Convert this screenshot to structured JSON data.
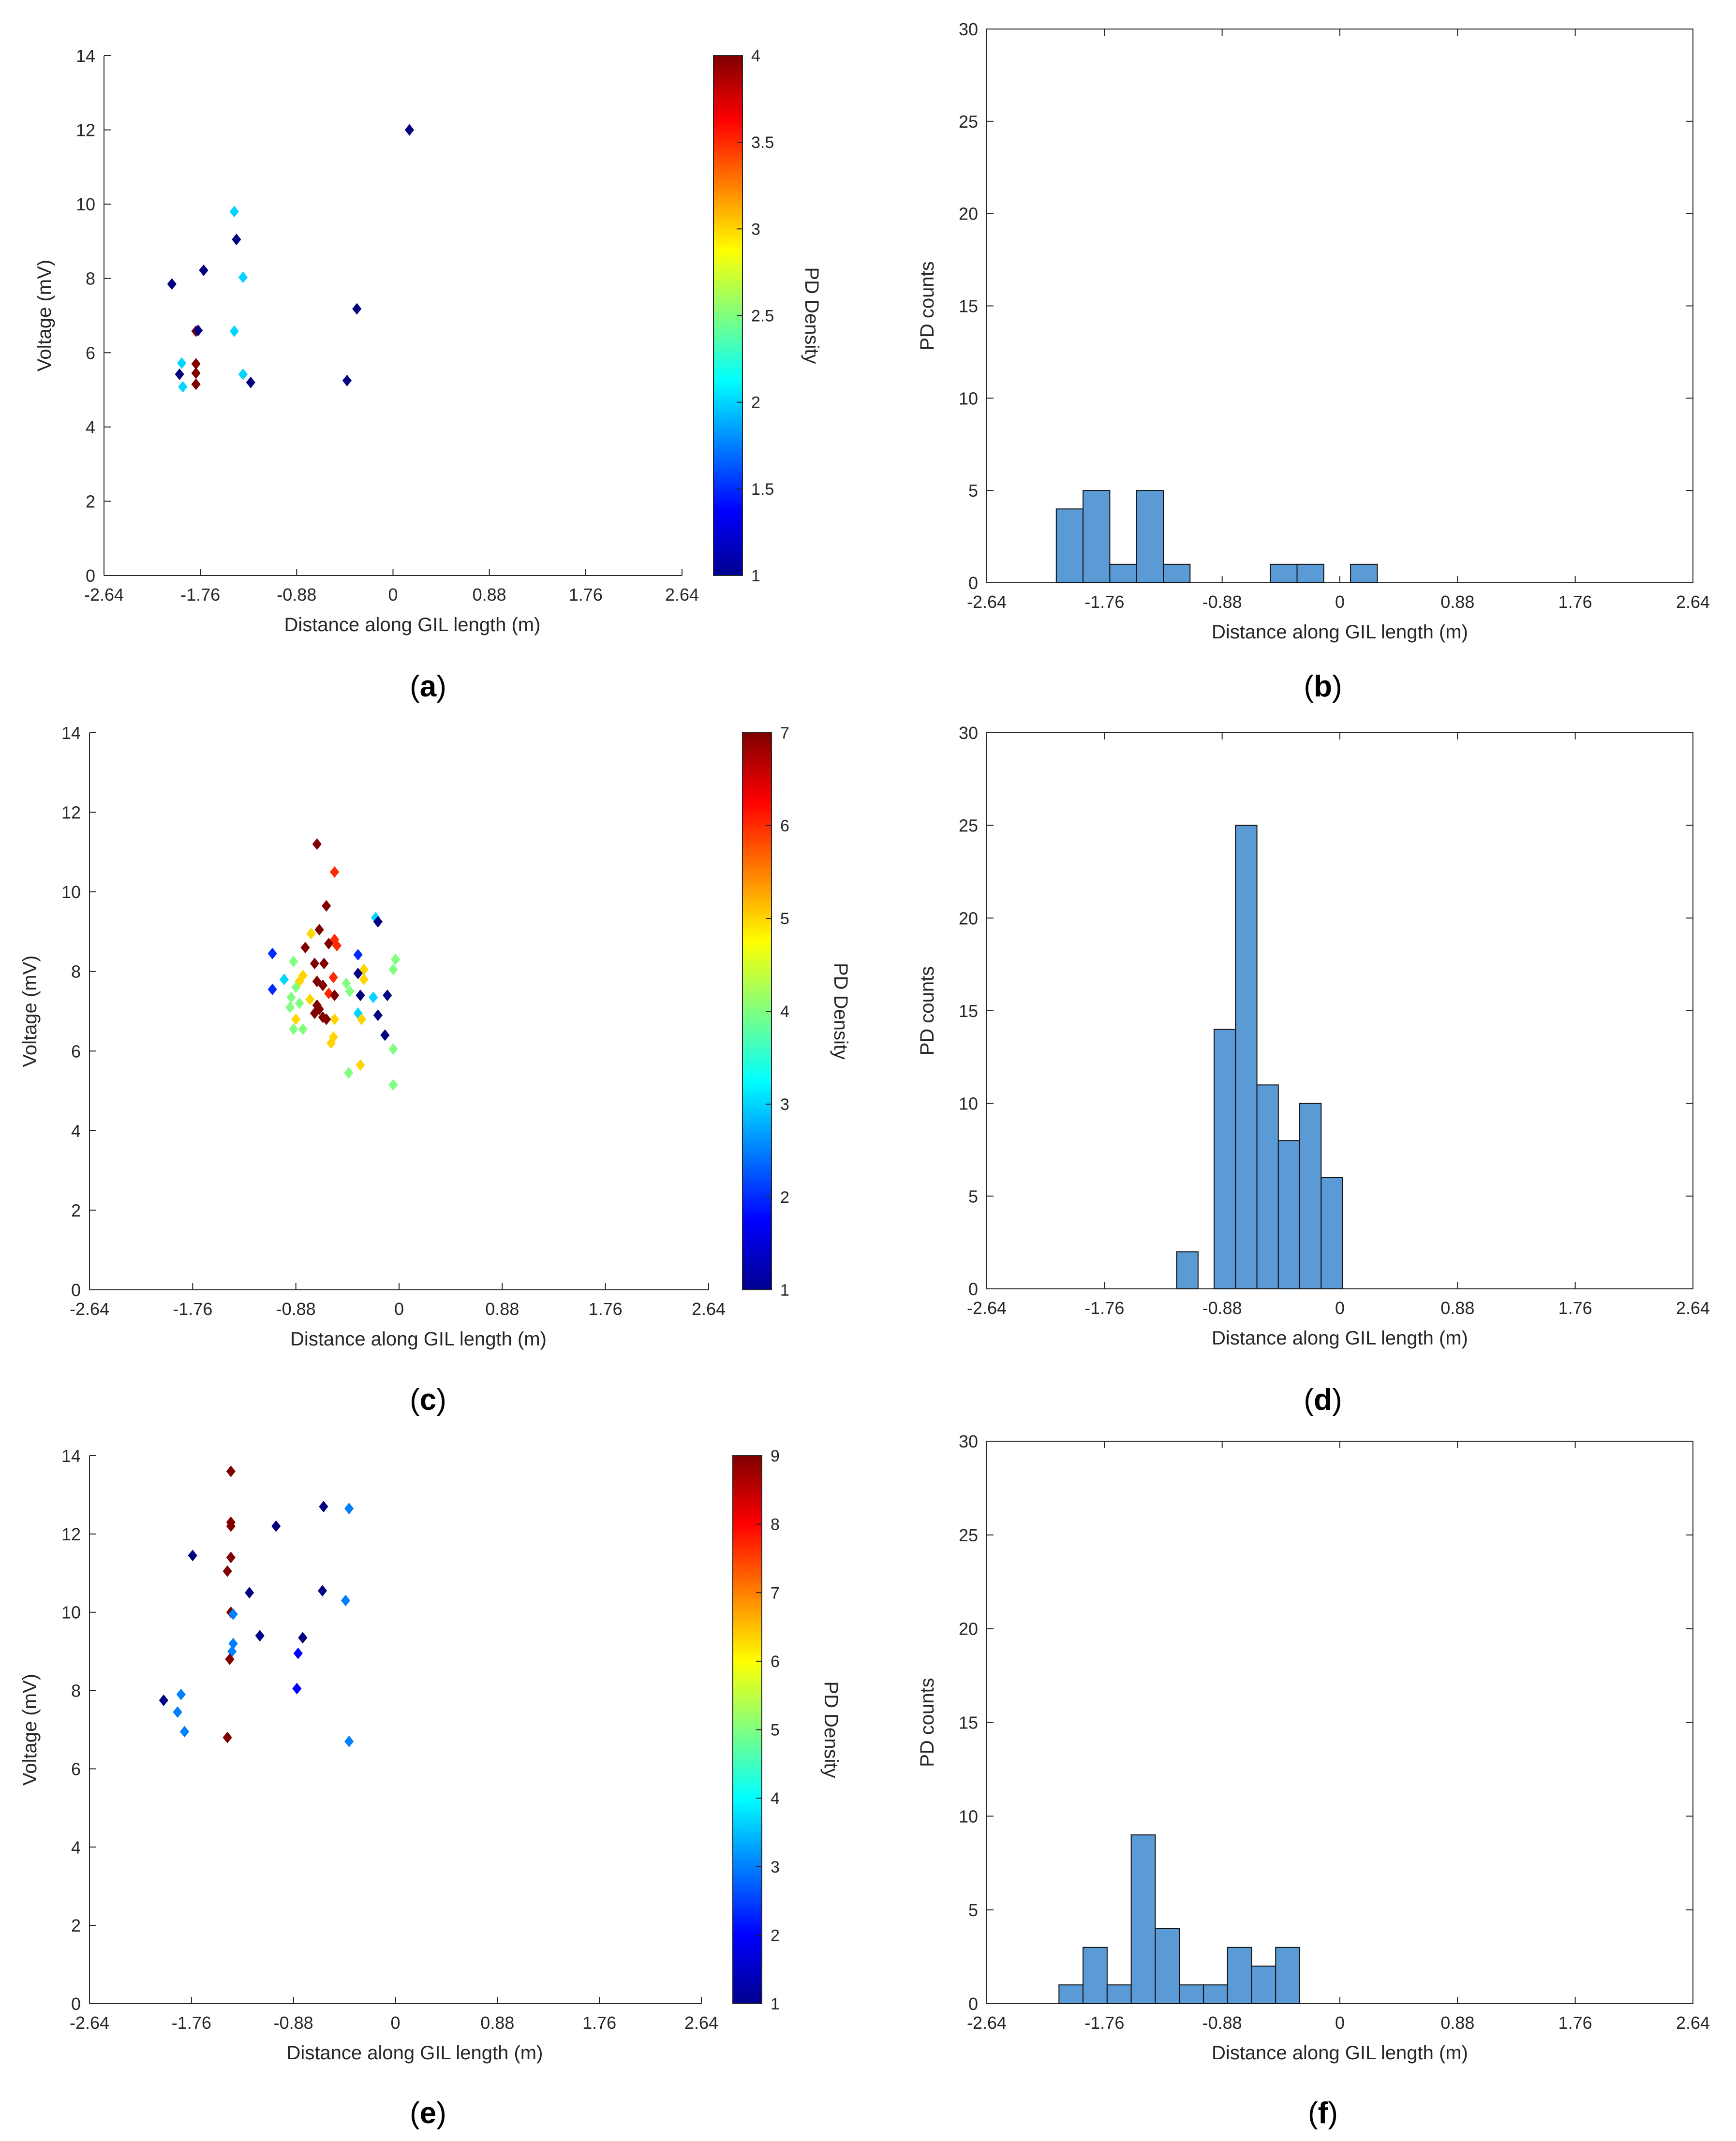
{
  "colorbar_label": "PD Density",
  "chart_data": [
    {
      "id": "a",
      "type": "scatter",
      "panel_label": "(a)",
      "xlabel": "Distance along GIL length (m)",
      "ylabel": "Voltage (mV)",
      "xlim": [
        -2.64,
        2.64
      ],
      "ylim": [
        0,
        14
      ],
      "xticks": [
        "-2.64",
        "-1.76",
        "-0.88",
        "0",
        "0.88",
        "1.76",
        "2.64"
      ],
      "yticks": [
        "0",
        "2",
        "4",
        "6",
        "8",
        "10",
        "12",
        "14"
      ],
      "colorbar": {
        "label": "PD Density",
        "range": [
          1,
          4
        ],
        "ticks": [
          "1",
          "1.5",
          "2",
          "2.5",
          "3",
          "3.5",
          "4"
        ]
      },
      "points": [
        {
          "x": -2.02,
          "y": 7.85,
          "c": 1
        },
        {
          "x": -1.95,
          "y": 5.42,
          "c": 1
        },
        {
          "x": -1.93,
          "y": 5.72,
          "c": 2
        },
        {
          "x": -1.92,
          "y": 5.08,
          "c": 2
        },
        {
          "x": -1.8,
          "y": 6.58,
          "c": 4
        },
        {
          "x": -1.78,
          "y": 6.6,
          "c": 1
        },
        {
          "x": -1.8,
          "y": 5.7,
          "c": 4
        },
        {
          "x": -1.8,
          "y": 5.45,
          "c": 4
        },
        {
          "x": -1.8,
          "y": 5.15,
          "c": 4
        },
        {
          "x": -1.73,
          "y": 8.22,
          "c": 1
        },
        {
          "x": -1.45,
          "y": 9.8,
          "c": 2
        },
        {
          "x": -1.43,
          "y": 9.05,
          "c": 1
        },
        {
          "x": -1.37,
          "y": 8.03,
          "c": 2
        },
        {
          "x": -1.45,
          "y": 6.58,
          "c": 2
        },
        {
          "x": -1.37,
          "y": 5.42,
          "c": 2
        },
        {
          "x": -1.3,
          "y": 5.2,
          "c": 1
        },
        {
          "x": -0.42,
          "y": 5.25,
          "c": 1
        },
        {
          "x": -0.33,
          "y": 7.18,
          "c": 1
        },
        {
          "x": 0.15,
          "y": 12.0,
          "c": 1
        }
      ]
    },
    {
      "id": "b",
      "type": "bar",
      "panel_label": "(b)",
      "xlabel": "Distance along GIL length (m)",
      "ylabel": "PD counts",
      "xlim": [
        -2.64,
        2.64
      ],
      "ylim": [
        0,
        30
      ],
      "xticks": [
        "-2.64",
        "-1.76",
        "-0.88",
        "0",
        "0.88",
        "1.76",
        "2.64"
      ],
      "yticks": [
        "0",
        "5",
        "10",
        "15",
        "20",
        "25",
        "30"
      ],
      "bin_width": 0.2,
      "bins": [
        {
          "x0": -2.12,
          "value": 4
        },
        {
          "x0": -1.92,
          "value": 5
        },
        {
          "x0": -1.72,
          "value": 1
        },
        {
          "x0": -1.52,
          "value": 5
        },
        {
          "x0": -1.32,
          "value": 1
        },
        {
          "x0": -0.52,
          "value": 1
        },
        {
          "x0": -0.32,
          "value": 1
        },
        {
          "x0": 0.08,
          "value": 1
        }
      ]
    },
    {
      "id": "c",
      "type": "scatter",
      "panel_label": "(c)",
      "xlabel": "Distance along GIL length (m)",
      "ylabel": "Voltage (mV)",
      "xlim": [
        -2.64,
        2.64
      ],
      "ylim": [
        0,
        14
      ],
      "xticks": [
        "-2.64",
        "-1.76",
        "-0.88",
        "0",
        "0.88",
        "1.76",
        "2.64"
      ],
      "yticks": [
        "0",
        "2",
        "4",
        "6",
        "8",
        "10",
        "12",
        "14"
      ],
      "colorbar": {
        "label": "PD Density",
        "range": [
          1,
          7
        ],
        "ticks": [
          "1",
          "2",
          "3",
          "4",
          "5",
          "6",
          "7"
        ]
      },
      "points": [
        {
          "x": -0.7,
          "y": 11.2,
          "c": 7
        },
        {
          "x": -0.55,
          "y": 10.5,
          "c": 6
        },
        {
          "x": -0.62,
          "y": 9.65,
          "c": 7
        },
        {
          "x": -0.2,
          "y": 9.35,
          "c": 3
        },
        {
          "x": -0.18,
          "y": 9.25,
          "c": 1
        },
        {
          "x": -0.68,
          "y": 9.05,
          "c": 7
        },
        {
          "x": -0.75,
          "y": 8.95,
          "c": 5
        },
        {
          "x": -0.55,
          "y": 8.8,
          "c": 6
        },
        {
          "x": -0.53,
          "y": 8.65,
          "c": 6
        },
        {
          "x": -0.6,
          "y": 8.7,
          "c": 7
        },
        {
          "x": -0.8,
          "y": 8.6,
          "c": 7
        },
        {
          "x": -1.08,
          "y": 8.45,
          "c": 2
        },
        {
          "x": -0.35,
          "y": 8.42,
          "c": 2
        },
        {
          "x": -0.03,
          "y": 8.3,
          "c": 4
        },
        {
          "x": -0.9,
          "y": 8.25,
          "c": 4
        },
        {
          "x": -0.72,
          "y": 8.2,
          "c": 7
        },
        {
          "x": -0.64,
          "y": 8.2,
          "c": 7
        },
        {
          "x": -0.05,
          "y": 8.05,
          "c": 4
        },
        {
          "x": -0.3,
          "y": 8.05,
          "c": 5
        },
        {
          "x": -0.35,
          "y": 7.95,
          "c": 1
        },
        {
          "x": -0.82,
          "y": 7.9,
          "c": 5
        },
        {
          "x": -0.56,
          "y": 7.85,
          "c": 6
        },
        {
          "x": -0.98,
          "y": 7.8,
          "c": 3
        },
        {
          "x": -0.85,
          "y": 7.75,
          "c": 5
        },
        {
          "x": -0.7,
          "y": 7.75,
          "c": 7
        },
        {
          "x": -0.3,
          "y": 7.8,
          "c": 5
        },
        {
          "x": -0.45,
          "y": 7.7,
          "c": 4
        },
        {
          "x": -0.65,
          "y": 7.65,
          "c": 7
        },
        {
          "x": -0.88,
          "y": 7.6,
          "c": 4
        },
        {
          "x": -1.08,
          "y": 7.55,
          "c": 2
        },
        {
          "x": -0.42,
          "y": 7.5,
          "c": 4
        },
        {
          "x": -0.6,
          "y": 7.45,
          "c": 6
        },
        {
          "x": -0.55,
          "y": 7.4,
          "c": 7
        },
        {
          "x": -0.33,
          "y": 7.4,
          "c": 1
        },
        {
          "x": -0.1,
          "y": 7.4,
          "c": 1
        },
        {
          "x": -0.22,
          "y": 7.35,
          "c": 3
        },
        {
          "x": -0.92,
          "y": 7.35,
          "c": 4
        },
        {
          "x": -0.76,
          "y": 7.3,
          "c": 5
        },
        {
          "x": -0.85,
          "y": 7.2,
          "c": 4
        },
        {
          "x": -0.7,
          "y": 7.15,
          "c": 7
        },
        {
          "x": -0.93,
          "y": 7.1,
          "c": 4
        },
        {
          "x": -0.68,
          "y": 7.05,
          "c": 7
        },
        {
          "x": -0.72,
          "y": 6.95,
          "c": 7
        },
        {
          "x": -0.35,
          "y": 6.95,
          "c": 3
        },
        {
          "x": -0.18,
          "y": 6.9,
          "c": 1
        },
        {
          "x": -0.65,
          "y": 6.85,
          "c": 7
        },
        {
          "x": -0.32,
          "y": 6.8,
          "c": 5
        },
        {
          "x": -0.55,
          "y": 6.8,
          "c": 5
        },
        {
          "x": -0.62,
          "y": 6.8,
          "c": 7
        },
        {
          "x": -0.88,
          "y": 6.8,
          "c": 5
        },
        {
          "x": -0.9,
          "y": 6.55,
          "c": 4
        },
        {
          "x": -0.82,
          "y": 6.55,
          "c": 4
        },
        {
          "x": -0.12,
          "y": 6.4,
          "c": 1
        },
        {
          "x": -0.56,
          "y": 6.35,
          "c": 5
        },
        {
          "x": -0.58,
          "y": 6.2,
          "c": 5
        },
        {
          "x": -0.05,
          "y": 6.05,
          "c": 4
        },
        {
          "x": -0.33,
          "y": 5.65,
          "c": 5
        },
        {
          "x": -0.43,
          "y": 5.45,
          "c": 4
        },
        {
          "x": -0.05,
          "y": 5.15,
          "c": 4
        }
      ]
    },
    {
      "id": "d",
      "type": "bar",
      "panel_label": "(d)",
      "xlabel": "Distance along GIL length (m)",
      "ylabel": "PD counts",
      "xlim": [
        -2.64,
        2.64
      ],
      "ylim": [
        0,
        30
      ],
      "xticks": [
        "-2.64",
        "-1.76",
        "-0.88",
        "0",
        "0.88",
        "1.76",
        "2.64"
      ],
      "yticks": [
        "0",
        "5",
        "10",
        "15",
        "20",
        "25",
        "30"
      ],
      "bin_width": 0.16,
      "bins": [
        {
          "x0": -1.22,
          "value": 2
        },
        {
          "x0": -0.94,
          "value": 14
        },
        {
          "x0": -0.78,
          "value": 25
        },
        {
          "x0": -0.62,
          "value": 11
        },
        {
          "x0": -0.46,
          "value": 8
        },
        {
          "x0": -0.3,
          "value": 10
        },
        {
          "x0": -0.14,
          "value": 6
        }
      ]
    },
    {
      "id": "e",
      "type": "scatter",
      "panel_label": "(e)",
      "xlabel": "Distance along GIL length (m)",
      "ylabel": "Voltage (mV)",
      "xlim": [
        -2.64,
        2.64
      ],
      "ylim": [
        0,
        14
      ],
      "xticks": [
        "-2.64",
        "-1.76",
        "-0.88",
        "0",
        "0.88",
        "1.76",
        "2.64"
      ],
      "yticks": [
        "0",
        "2",
        "4",
        "6",
        "8",
        "10",
        "12",
        "14"
      ],
      "colorbar": {
        "label": "PD Density",
        "range": [
          1,
          9
        ],
        "ticks": [
          "1",
          "2",
          "3",
          "4",
          "5",
          "6",
          "7",
          "8",
          "9"
        ]
      },
      "points": [
        {
          "x": -1.42,
          "y": 13.6,
          "c": 9
        },
        {
          "x": -0.62,
          "y": 12.7,
          "c": 1
        },
        {
          "x": -0.4,
          "y": 12.65,
          "c": 3
        },
        {
          "x": -1.42,
          "y": 12.3,
          "c": 9
        },
        {
          "x": -1.42,
          "y": 12.2,
          "c": 9
        },
        {
          "x": -1.03,
          "y": 12.2,
          "c": 1
        },
        {
          "x": -1.75,
          "y": 11.45,
          "c": 1
        },
        {
          "x": -1.42,
          "y": 11.4,
          "c": 9
        },
        {
          "x": -1.45,
          "y": 11.05,
          "c": 9
        },
        {
          "x": -0.63,
          "y": 10.55,
          "c": 1
        },
        {
          "x": -1.26,
          "y": 10.5,
          "c": 1
        },
        {
          "x": -0.43,
          "y": 10.3,
          "c": 3
        },
        {
          "x": -1.42,
          "y": 10.0,
          "c": 9
        },
        {
          "x": -1.4,
          "y": 9.95,
          "c": 3
        },
        {
          "x": -1.17,
          "y": 9.4,
          "c": 1
        },
        {
          "x": -0.8,
          "y": 9.35,
          "c": 1
        },
        {
          "x": -1.4,
          "y": 9.2,
          "c": 3
        },
        {
          "x": -1.41,
          "y": 9.0,
          "c": 3
        },
        {
          "x": -0.84,
          "y": 8.95,
          "c": 2
        },
        {
          "x": -1.43,
          "y": 8.8,
          "c": 9
        },
        {
          "x": -0.85,
          "y": 8.05,
          "c": 2
        },
        {
          "x": -1.85,
          "y": 7.9,
          "c": 3
        },
        {
          "x": -2.0,
          "y": 7.75,
          "c": 1
        },
        {
          "x": -1.88,
          "y": 7.45,
          "c": 3
        },
        {
          "x": -1.82,
          "y": 6.95,
          "c": 3
        },
        {
          "x": -1.45,
          "y": 6.8,
          "c": 9
        },
        {
          "x": -0.4,
          "y": 6.7,
          "c": 3
        }
      ]
    },
    {
      "id": "f",
      "type": "bar",
      "panel_label": "(f)",
      "xlabel": "Distance along GIL length (m)",
      "ylabel": "PD counts",
      "xlim": [
        -2.64,
        2.64
      ],
      "ylim": [
        0,
        30
      ],
      "xticks": [
        "-2.64",
        "-1.76",
        "-0.88",
        "0",
        "0.88",
        "1.76",
        "2.64"
      ],
      "yticks": [
        "0",
        "5",
        "10",
        "15",
        "20",
        "25",
        "30"
      ],
      "bin_width": 0.18,
      "bins": [
        {
          "x0": -2.64,
          "value": 0
        },
        {
          "x0": -2.46,
          "value": 0
        },
        {
          "x0": -2.28,
          "value": 0
        },
        {
          "x0": -2.1,
          "value": 1
        },
        {
          "x0": -1.92,
          "value": 3
        },
        {
          "x0": -1.74,
          "value": 1
        },
        {
          "x0": -1.56,
          "value": 9
        },
        {
          "x0": -1.38,
          "value": 4
        },
        {
          "x0": -1.2,
          "value": 1
        },
        {
          "x0": -1.02,
          "value": 1
        },
        {
          "x0": -0.84,
          "value": 3
        },
        {
          "x0": -0.66,
          "value": 2
        },
        {
          "x0": -0.48,
          "value": 3
        }
      ]
    }
  ]
}
